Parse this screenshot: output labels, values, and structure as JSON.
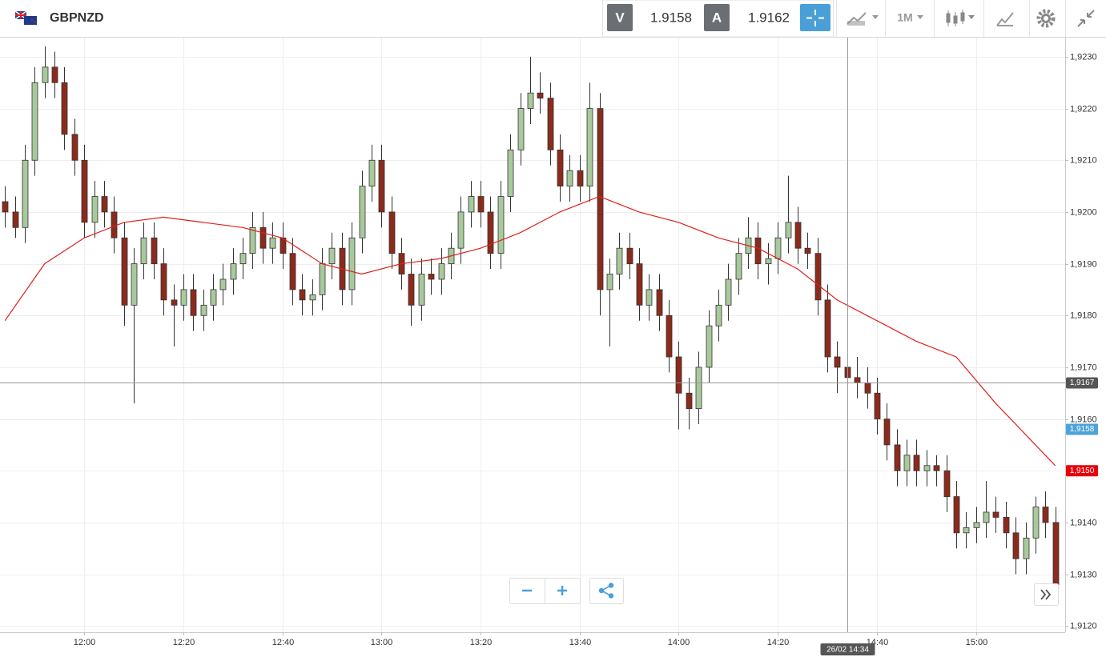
{
  "header": {
    "symbol": "GBPNZD",
    "sell": {
      "label": "V",
      "price": 1.9158
    },
    "buy": {
      "label": "A",
      "price": 1.9162
    },
    "timeframe": "1M"
  },
  "chart_data": {
    "type": "candlestick",
    "x": [
      "11:44",
      "11:46",
      "11:48",
      "11:50",
      "11:52",
      "11:54",
      "11:56",
      "11:58",
      "12:00",
      "12:02",
      "12:04",
      "12:06",
      "12:08",
      "12:10",
      "12:12",
      "12:14",
      "12:16",
      "12:18",
      "12:20",
      "12:22",
      "12:24",
      "12:26",
      "12:28",
      "12:30",
      "12:32",
      "12:34",
      "12:36",
      "12:38",
      "12:40",
      "12:42",
      "12:44",
      "12:46",
      "12:48",
      "12:50",
      "12:52",
      "12:54",
      "12:56",
      "12:58",
      "13:00",
      "13:02",
      "13:04",
      "13:06",
      "13:08",
      "13:10",
      "13:12",
      "13:14",
      "13:16",
      "13:18",
      "13:20",
      "13:22",
      "13:24",
      "13:26",
      "13:28",
      "13:30",
      "13:32",
      "13:34",
      "13:36",
      "13:38",
      "13:40",
      "13:42",
      "13:44",
      "13:46",
      "13:48",
      "13:50",
      "13:52",
      "13:54",
      "13:56",
      "13:58",
      "14:00",
      "14:02",
      "14:04",
      "14:06",
      "14:08",
      "14:10",
      "14:12",
      "14:14",
      "14:16",
      "14:18",
      "14:20",
      "14:22",
      "14:24",
      "14:26",
      "14:28",
      "14:30",
      "14:32",
      "14:34",
      "14:36",
      "14:38",
      "14:40",
      "14:42",
      "14:44",
      "14:46",
      "14:48",
      "14:50",
      "14:52",
      "14:54",
      "14:56",
      "14:58",
      "15:00",
      "15:02",
      "15:04",
      "15:06",
      "15:08",
      "15:10",
      "15:12",
      "15:14",
      "15:16"
    ],
    "ohlc": [
      [
        1.9202,
        1.9205,
        1.9197,
        1.92
      ],
      [
        1.92,
        1.9203,
        1.9195,
        1.9197
      ],
      [
        1.9197,
        1.9213,
        1.9194,
        1.921
      ],
      [
        1.921,
        1.9228,
        1.9207,
        1.9225
      ],
      [
        1.9225,
        1.9232,
        1.9222,
        1.9228
      ],
      [
        1.9228,
        1.9231,
        1.9222,
        1.9225
      ],
      [
        1.9225,
        1.9228,
        1.9212,
        1.9215
      ],
      [
        1.9215,
        1.9218,
        1.9207,
        1.921
      ],
      [
        1.921,
        1.9213,
        1.9195,
        1.9198
      ],
      [
        1.9198,
        1.9206,
        1.9195,
        1.9203
      ],
      [
        1.9203,
        1.9206,
        1.9197,
        1.92
      ],
      [
        1.92,
        1.9203,
        1.9192,
        1.9195
      ],
      [
        1.9195,
        1.9198,
        1.9178,
        1.9182
      ],
      [
        1.9182,
        1.9193,
        1.9163,
        1.919
      ],
      [
        1.919,
        1.9198,
        1.9187,
        1.9195
      ],
      [
        1.9195,
        1.9198,
        1.9187,
        1.919
      ],
      [
        1.919,
        1.9193,
        1.918,
        1.9183
      ],
      [
        1.9183,
        1.9186,
        1.9174,
        1.9182
      ],
      [
        1.9182,
        1.9188,
        1.9179,
        1.9185
      ],
      [
        1.9185,
        1.9188,
        1.9177,
        1.918
      ],
      [
        1.918,
        1.9185,
        1.9177,
        1.9182
      ],
      [
        1.9182,
        1.9188,
        1.9179,
        1.9185
      ],
      [
        1.9185,
        1.919,
        1.9182,
        1.9187
      ],
      [
        1.9187,
        1.9193,
        1.9184,
        1.919
      ],
      [
        1.919,
        1.9195,
        1.9187,
        1.9192
      ],
      [
        1.9192,
        1.92,
        1.9189,
        1.9197
      ],
      [
        1.9197,
        1.92,
        1.919,
        1.9193
      ],
      [
        1.9193,
        1.9198,
        1.919,
        1.9195
      ],
      [
        1.9195,
        1.9198,
        1.9189,
        1.9192
      ],
      [
        1.9192,
        1.9195,
        1.9182,
        1.9185
      ],
      [
        1.9185,
        1.9188,
        1.918,
        1.9183
      ],
      [
        1.9183,
        1.9187,
        1.918,
        1.9184
      ],
      [
        1.9184,
        1.9193,
        1.9181,
        1.919
      ],
      [
        1.919,
        1.9196,
        1.9187,
        1.9193
      ],
      [
        1.9193,
        1.9196,
        1.9182,
        1.9185
      ],
      [
        1.9185,
        1.9198,
        1.9182,
        1.9195
      ],
      [
        1.9195,
        1.9208,
        1.9192,
        1.9205
      ],
      [
        1.9205,
        1.9213,
        1.9202,
        1.921
      ],
      [
        1.921,
        1.9213,
        1.9197,
        1.92
      ],
      [
        1.92,
        1.9203,
        1.9189,
        1.9192
      ],
      [
        1.9192,
        1.9195,
        1.9185,
        1.9188
      ],
      [
        1.9188,
        1.9191,
        1.9178,
        1.9182
      ],
      [
        1.9182,
        1.9191,
        1.9179,
        1.9188
      ],
      [
        1.9188,
        1.9191,
        1.9184,
        1.9187
      ],
      [
        1.9187,
        1.9193,
        1.9184,
        1.919
      ],
      [
        1.919,
        1.9196,
        1.9187,
        1.9193
      ],
      [
        1.9193,
        1.9203,
        1.919,
        1.92
      ],
      [
        1.92,
        1.9206,
        1.9197,
        1.9203
      ],
      [
        1.9203,
        1.9206,
        1.9197,
        1.92
      ],
      [
        1.92,
        1.9203,
        1.9189,
        1.9192
      ],
      [
        1.9192,
        1.9206,
        1.9189,
        1.9203
      ],
      [
        1.9203,
        1.9215,
        1.92,
        1.9212
      ],
      [
        1.9212,
        1.9223,
        1.9209,
        1.922
      ],
      [
        1.922,
        1.923,
        1.9217,
        1.9223
      ],
      [
        1.9223,
        1.9227,
        1.9219,
        1.9222
      ],
      [
        1.9222,
        1.9225,
        1.9209,
        1.9212
      ],
      [
        1.9212,
        1.9215,
        1.9202,
        1.9205
      ],
      [
        1.9205,
        1.9211,
        1.9202,
        1.9208
      ],
      [
        1.9208,
        1.9211,
        1.9202,
        1.9205
      ],
      [
        1.9205,
        1.9225,
        1.9202,
        1.922
      ],
      [
        1.922,
        1.9223,
        1.918,
        1.9185
      ],
      [
        1.9185,
        1.9191,
        1.9174,
        1.9188
      ],
      [
        1.9188,
        1.9196,
        1.9185,
        1.9193
      ],
      [
        1.9193,
        1.9196,
        1.9187,
        1.919
      ],
      [
        1.919,
        1.9193,
        1.9179,
        1.9182
      ],
      [
        1.9182,
        1.9188,
        1.9179,
        1.9185
      ],
      [
        1.9185,
        1.9188,
        1.9177,
        1.918
      ],
      [
        1.918,
        1.9183,
        1.9169,
        1.9172
      ],
      [
        1.9172,
        1.9175,
        1.9158,
        1.9165
      ],
      [
        1.9165,
        1.9168,
        1.9158,
        1.9162
      ],
      [
        1.9162,
        1.9173,
        1.9159,
        1.917
      ],
      [
        1.917,
        1.9181,
        1.9167,
        1.9178
      ],
      [
        1.9178,
        1.9185,
        1.9175,
        1.9182
      ],
      [
        1.9182,
        1.919,
        1.9179,
        1.9187
      ],
      [
        1.9187,
        1.9195,
        1.9184,
        1.9192
      ],
      [
        1.9192,
        1.9199,
        1.9189,
        1.9195
      ],
      [
        1.9195,
        1.9198,
        1.9187,
        1.919
      ],
      [
        1.919,
        1.9194,
        1.9186,
        1.9191
      ],
      [
        1.9191,
        1.9198,
        1.9188,
        1.9195
      ],
      [
        1.9195,
        1.9207,
        1.9192,
        1.9198
      ],
      [
        1.9198,
        1.9201,
        1.919,
        1.9193
      ],
      [
        1.9193,
        1.9196,
        1.9189,
        1.9192
      ],
      [
        1.9192,
        1.9195,
        1.918,
        1.9183
      ],
      [
        1.9183,
        1.9186,
        1.9169,
        1.9172
      ],
      [
        1.9172,
        1.9175,
        1.9165,
        1.917
      ],
      [
        1.917,
        1.9175,
        1.9165,
        1.9168
      ],
      [
        1.9168,
        1.9172,
        1.9164,
        1.9167
      ],
      [
        1.9167,
        1.917,
        1.9162,
        1.9165
      ],
      [
        1.9165,
        1.9168,
        1.9157,
        1.916
      ],
      [
        1.916,
        1.9163,
        1.9152,
        1.9155
      ],
      [
        1.9155,
        1.9158,
        1.9147,
        1.915
      ],
      [
        1.915,
        1.9156,
        1.9147,
        1.9153
      ],
      [
        1.9153,
        1.9156,
        1.9147,
        1.915
      ],
      [
        1.915,
        1.9154,
        1.9147,
        1.9151
      ],
      [
        1.9151,
        1.9153,
        1.9147,
        1.915
      ],
      [
        1.915,
        1.9153,
        1.9142,
        1.9145
      ],
      [
        1.9145,
        1.9148,
        1.9135,
        1.9138
      ],
      [
        1.9138,
        1.9142,
        1.9135,
        1.9139
      ],
      [
        1.9139,
        1.9143,
        1.9136,
        1.914
      ],
      [
        1.914,
        1.9148,
        1.9137,
        1.9142
      ],
      [
        1.9142,
        1.9145,
        1.9138,
        1.9141
      ],
      [
        1.9141,
        1.9144,
        1.9135,
        1.9138
      ],
      [
        1.9138,
        1.9141,
        1.913,
        1.9133
      ],
      [
        1.9133,
        1.914,
        1.913,
        1.9137
      ],
      [
        1.9137,
        1.9145,
        1.9134,
        1.9143
      ],
      [
        1.9143,
        1.9146,
        1.9137,
        1.914
      ],
      [
        1.914,
        1.9143,
        1.9125,
        1.9128
      ]
    ],
    "up_color": "#a8c99c",
    "down_color": "#8c2a1c",
    "ma": {
      "color": "#e0201a",
      "x": [
        "11:44",
        "11:52",
        "12:00",
        "12:08",
        "12:16",
        "12:24",
        "12:32",
        "12:40",
        "12:48",
        "12:56",
        "13:04",
        "13:12",
        "13:20",
        "13:28",
        "13:36",
        "13:44",
        "13:52",
        "14:00",
        "14:08",
        "14:16",
        "14:24",
        "14:32",
        "14:40",
        "14:48",
        "14:56",
        "15:04",
        "15:12",
        "15:16"
      ],
      "values": [
        1.9179,
        1.919,
        1.9195,
        1.9198,
        1.9199,
        1.9198,
        1.9197,
        1.9195,
        1.919,
        1.9188,
        1.919,
        1.9191,
        1.9193,
        1.9196,
        1.92,
        1.9203,
        1.92,
        1.9198,
        1.9195,
        1.9193,
        1.9189,
        1.9183,
        1.9179,
        1.9175,
        1.9172,
        1.9163,
        1.9155,
        1.9151
      ]
    },
    "xlim": [
      "11:43",
      "15:18"
    ],
    "xticks": [
      "12:00",
      "12:20",
      "12:40",
      "13:00",
      "13:20",
      "13:40",
      "14:00",
      "14:20",
      "14:40",
      "15:00"
    ],
    "ylim": [
      1.91188,
      1.92337
    ],
    "yticks": [
      {
        "value": 1.912,
        "label": "1,9120"
      },
      {
        "value": 1.913,
        "label": "1,9130"
      },
      {
        "value": 1.914,
        "label": "1,9140"
      },
      {
        "value": 1.915,
        "label": "1,9150"
      },
      {
        "value": 1.916,
        "label": "1,9160"
      },
      {
        "value": 1.917,
        "label": "1,9170"
      },
      {
        "value": 1.918,
        "label": "1,9180"
      },
      {
        "value": 1.919,
        "label": "1,9190"
      },
      {
        "value": 1.92,
        "label": "1,9200"
      },
      {
        "value": 1.921,
        "label": "1,9210"
      },
      {
        "value": 1.922,
        "label": "1,9220"
      },
      {
        "value": 1.923,
        "label": "1,9230"
      }
    ],
    "grid": true,
    "crosshair": {
      "price": {
        "value": 1.9167,
        "label": "1,9167"
      },
      "time": "26/02 14:34",
      "color": "#555555"
    },
    "badges": [
      {
        "value": 1.9158,
        "label": "1,9158",
        "color": "#4ca3d9"
      },
      {
        "value": 1.915,
        "label": "1,9150",
        "color": "#e8000b"
      }
    ]
  }
}
